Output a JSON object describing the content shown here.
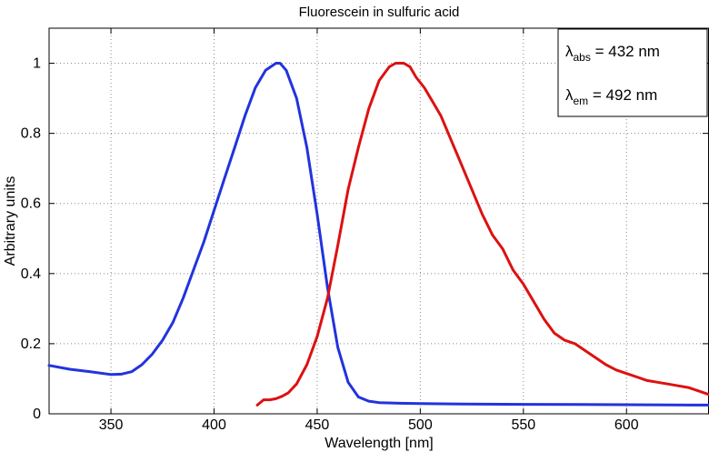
{
  "chart_data": {
    "type": "line",
    "title": "Fluorescein in sulfuric acid",
    "xlabel": "Wavelength [nm]",
    "ylabel": "Arbitrary units",
    "xlim": [
      320,
      640
    ],
    "ylim": [
      0,
      1.1
    ],
    "xticks": [
      350,
      400,
      450,
      500,
      550,
      600
    ],
    "yticks": [
      0,
      0.2,
      0.4,
      0.6,
      0.8,
      1
    ],
    "ytick_labels": [
      "0",
      "0.2",
      "0.4",
      "0.6",
      "0.8",
      "1"
    ],
    "grid": true,
    "series": [
      {
        "color": "#2233dd",
        "x": [
          320,
          330,
          340,
          350,
          355,
          360,
          365,
          370,
          375,
          380,
          385,
          390,
          395,
          400,
          405,
          410,
          415,
          420,
          425,
          430,
          432,
          435,
          440,
          445,
          450,
          455,
          460,
          465,
          470,
          475,
          480,
          490,
          500,
          520,
          550,
          600,
          640
        ],
        "y": [
          0.138,
          0.127,
          0.12,
          0.112,
          0.113,
          0.12,
          0.14,
          0.17,
          0.21,
          0.26,
          0.33,
          0.41,
          0.49,
          0.58,
          0.67,
          0.76,
          0.85,
          0.93,
          0.98,
          1.0,
          1.0,
          0.98,
          0.9,
          0.76,
          0.57,
          0.36,
          0.19,
          0.09,
          0.048,
          0.036,
          0.032,
          0.03,
          0.029,
          0.028,
          0.027,
          0.026,
          0.025
        ]
      },
      {
        "color": "#dd1111",
        "x": [
          421,
          424,
          427,
          430,
          433,
          436,
          440,
          445,
          450,
          455,
          460,
          465,
          470,
          475,
          480,
          485,
          488,
          490,
          492,
          495,
          498,
          502,
          506,
          510,
          515,
          520,
          525,
          530,
          535,
          540,
          545,
          550,
          555,
          560,
          565,
          570,
          575,
          580,
          585,
          590,
          595,
          600,
          605,
          610,
          615,
          620,
          625,
          630,
          635,
          640
        ],
        "y": [
          0.025,
          0.04,
          0.04,
          0.043,
          0.05,
          0.06,
          0.085,
          0.14,
          0.22,
          0.33,
          0.48,
          0.64,
          0.76,
          0.87,
          0.95,
          0.99,
          1.0,
          1.0,
          1.0,
          0.99,
          0.96,
          0.93,
          0.89,
          0.85,
          0.78,
          0.71,
          0.64,
          0.57,
          0.51,
          0.47,
          0.41,
          0.37,
          0.32,
          0.27,
          0.23,
          0.21,
          0.2,
          0.18,
          0.16,
          0.14,
          0.125,
          0.115,
          0.105,
          0.095,
          0.09,
          0.085,
          0.08,
          0.075,
          0.065,
          0.055
        ]
      }
    ],
    "annotation": {
      "lines": [
        {
          "symbol": "λ",
          "sub": "abs",
          "text": " = 432 nm"
        },
        {
          "symbol": "λ",
          "sub": "em",
          "text": " = 492 nm"
        }
      ],
      "placement": "top-right"
    }
  }
}
